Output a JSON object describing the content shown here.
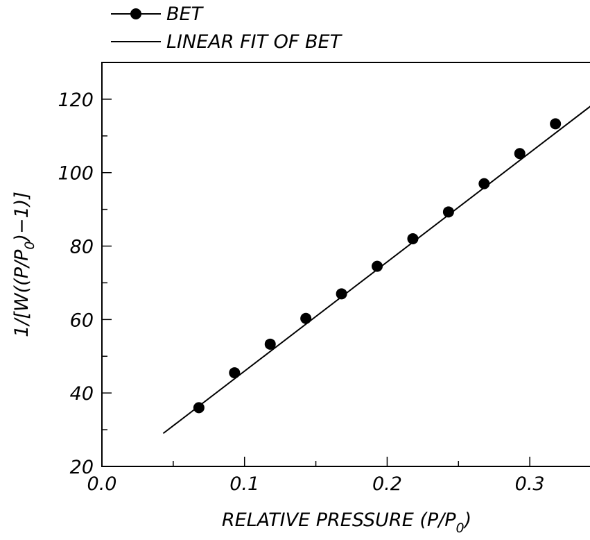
{
  "chart_data": {
    "type": "scatter",
    "title": "",
    "xlabel": {
      "main": "RELATIVE PRESSURE (P/P",
      "subscript": "0",
      "tail": ")"
    },
    "ylabel": {
      "main": "1/[W((P/P",
      "subscript": "0",
      "tail": ")−1)]"
    },
    "xlim": [
      0.0,
      0.35
    ],
    "ylim": [
      20,
      130
    ],
    "x_ticks": [
      0.0,
      0.1,
      0.2,
      0.3
    ],
    "x_tick_labels": [
      "0.0",
      "0.1",
      "0.2",
      "0.3"
    ],
    "x_minor_ticks": [
      0.05,
      0.15,
      0.25
    ],
    "y_ticks": [
      20,
      40,
      60,
      80,
      100,
      120
    ],
    "y_tick_labels": [
      "20",
      "40",
      "60",
      "80",
      "100",
      "120"
    ],
    "y_minor_ticks": [
      30,
      50,
      70,
      90,
      110
    ],
    "grid": false,
    "legend_position": "top-left, above plot",
    "series": [
      {
        "name": "BET",
        "style": "markers",
        "color": "#000000",
        "x": [
          0.068,
          0.093,
          0.118,
          0.143,
          0.168,
          0.193,
          0.218,
          0.243,
          0.268,
          0.293,
          0.318
        ],
        "y": [
          36,
          45.5,
          53.3,
          60.3,
          67,
          74.5,
          82,
          89.3,
          97,
          105.2,
          113.3
        ]
      },
      {
        "name": "LINEAR FIT OF BET",
        "style": "line",
        "color": "#000000",
        "x": [
          0.043,
          0.35
        ],
        "y": [
          29,
          120.3
        ]
      }
    ]
  }
}
